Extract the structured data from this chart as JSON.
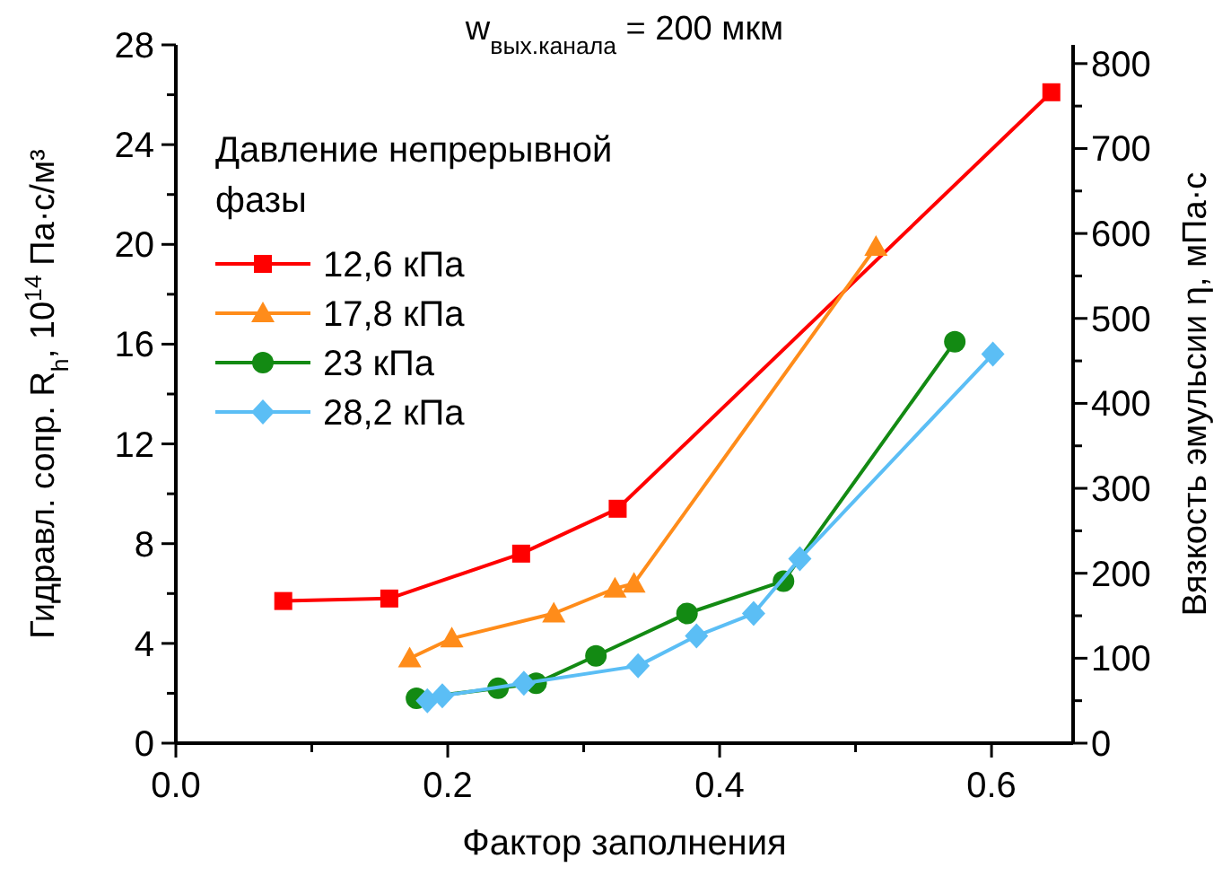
{
  "chart_data": {
    "type": "line",
    "title": "w$_{вых.канала}$ = 200 мкм",
    "xlabel": "Фактор заполнения",
    "ylabel": "Гидравл. сопр. R$_{h}$, 10$^{14}$ Па·с/м³",
    "y2label": "Вязкость эмульсии η, мПа·с",
    "legend_title": "Давление непрерывной фазы",
    "legend": "top left",
    "grid": false,
    "line_style": "solid",
    "xlim": [
      0,
      0.66
    ],
    "xticks": [
      {
        "value": 0,
        "label": "0.0"
      },
      {
        "value": 0.1,
        "label": null
      },
      {
        "value": 0.2,
        "label": "0.2"
      },
      {
        "value": 0.3,
        "label": null
      },
      {
        "value": 0.4,
        "label": "0.4"
      },
      {
        "value": 0.5,
        "label": null
      },
      {
        "value": 0.6,
        "label": "0.6"
      }
    ],
    "ylim": [
      0,
      28
    ],
    "yticks": [
      0,
      {
        "value": 2,
        "label": null
      },
      4,
      {
        "value": 6,
        "label": null
      },
      8,
      {
        "value": 10,
        "label": null
      },
      12,
      {
        "value": 14,
        "label": null
      },
      16,
      {
        "value": 18,
        "label": null
      },
      20,
      {
        "value": 22,
        "label": null
      },
      24,
      {
        "value": 26,
        "label": null
      },
      28
    ],
    "y2lim": [
      0,
      822
    ],
    "y2ticks": [
      0,
      {
        "value": 50,
        "label": null
      },
      100,
      {
        "value": 150,
        "label": null
      },
      200,
      {
        "value": 250,
        "label": null
      },
      300,
      {
        "value": 350,
        "label": null
      },
      400,
      {
        "value": 450,
        "label": null
      },
      500,
      {
        "value": 550,
        "label": null
      },
      600,
      {
        "value": 650,
        "label": null
      },
      700,
      {
        "value": 750,
        "label": null
      },
      800
    ],
    "series": [
      {
        "name": "12,6 кПа",
        "color": "#ff0000",
        "marker": "square",
        "x": [
          0.079,
          0.157,
          0.254,
          0.325,
          0.644
        ],
        "values": [
          5.7,
          5.8,
          7.6,
          9.4,
          26.1
        ]
      },
      {
        "name": "17,8 кПа",
        "color": "#ff8c1a",
        "marker": "triangle",
        "x": [
          0.172,
          0.203,
          0.278,
          0.323,
          0.337,
          0.515
        ],
        "values": [
          3.4,
          4.2,
          5.2,
          6.2,
          6.4,
          19.9
        ]
      },
      {
        "name": "23 кПа",
        "color": "#138a13",
        "marker": "circle",
        "x": [
          0.177,
          0.237,
          0.265,
          0.309,
          0.376,
          0.447,
          0.573
        ],
        "values": [
          1.8,
          2.2,
          2.4,
          3.5,
          5.2,
          6.5,
          16.1
        ]
      },
      {
        "name": "28,2 кПа",
        "color": "#5bbef5",
        "marker": "diamond",
        "x": [
          0.185,
          0.196,
          0.256,
          0.34,
          0.383,
          0.425,
          0.459,
          0.601
        ],
        "values": [
          1.7,
          1.9,
          2.4,
          3.1,
          4.3,
          5.2,
          7.4,
          15.6
        ]
      }
    ]
  }
}
